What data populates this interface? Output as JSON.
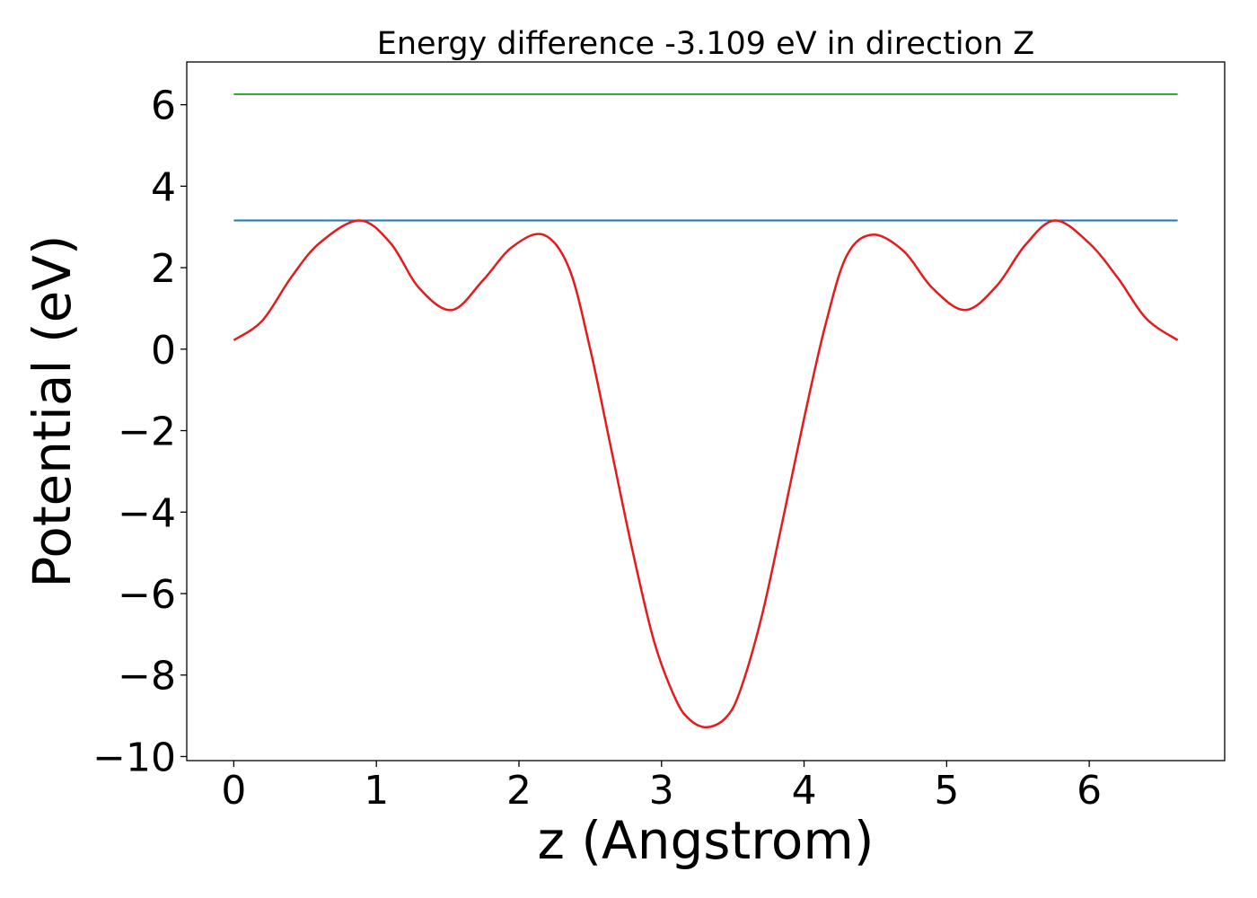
{
  "chart_data": {
    "type": "line",
    "title": "Energy difference -3.109 eV in direction Z",
    "xlabel": "z (Angstrom)",
    "ylabel": "Potential (eV)",
    "xlim": [
      -0.33,
      6.95
    ],
    "ylim": [
      -10.1,
      7.05
    ],
    "x_ticks": [
      0,
      1,
      2,
      3,
      4,
      5,
      6
    ],
    "x_tick_labels": [
      "0",
      "1",
      "2",
      "3",
      "4",
      "5",
      "6"
    ],
    "y_ticks": [
      6,
      4,
      2,
      0,
      -2,
      -4,
      -6,
      -8,
      -10
    ],
    "y_tick_labels": [
      "6",
      "4",
      "2",
      "0",
      "−2",
      "−4",
      "−6",
      "−8",
      "−10"
    ],
    "grid": false,
    "legend": "none",
    "series": [
      {
        "color": "#2ca02c",
        "x": [
          0,
          6.62
        ],
        "y": [
          6.26,
          6.26
        ]
      },
      {
        "color": "#1f77b4",
        "x": [
          0,
          6.62
        ],
        "y": [
          3.16,
          3.16
        ]
      },
      {
        "color": "#e41a1c",
        "x": [
          0,
          0.2,
          0.4,
          0.6,
          0.88,
          1.1,
          1.3,
          1.53,
          1.75,
          1.95,
          2.17,
          2.35,
          2.5,
          2.65,
          2.8,
          2.95,
          3.1,
          3.2,
          3.32,
          3.45,
          3.55,
          3.7,
          3.85,
          4.0,
          4.15,
          4.3,
          4.48,
          4.7,
          4.9,
          5.13,
          5.35,
          5.55,
          5.76,
          6.0,
          6.2,
          6.4,
          6.62
        ],
        "y": [
          0.22,
          0.7,
          1.75,
          2.6,
          3.16,
          2.6,
          1.5,
          0.96,
          1.7,
          2.5,
          2.81,
          2.0,
          0.0,
          -2.5,
          -5.0,
          -7.2,
          -8.6,
          -9.1,
          -9.28,
          -9.05,
          -8.4,
          -6.6,
          -4.2,
          -1.7,
          0.6,
          2.3,
          2.81,
          2.4,
          1.5,
          0.96,
          1.55,
          2.55,
          3.16,
          2.6,
          1.75,
          0.75,
          0.22
        ]
      }
    ]
  }
}
